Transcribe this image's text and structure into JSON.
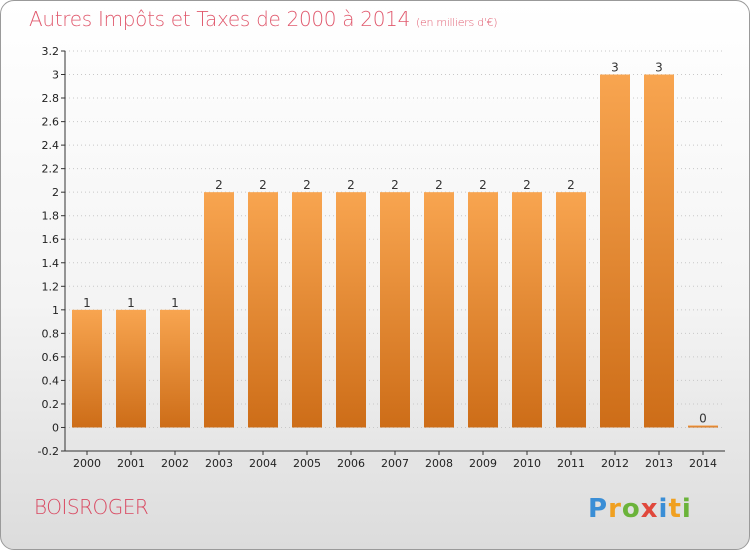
{
  "title": "Autres Impôts et Taxes de 2000 à 2014",
  "unit_note": "(en milliers d'€)",
  "commune": "BOISROGER",
  "logo_text": "Proxiti",
  "colors": {
    "title": "#e05a6e",
    "bar_light": "#f8a550",
    "bar_dark": "#cd6d18",
    "axis": "#333333",
    "grid": "#c8c8c8"
  },
  "chart_data": {
    "type": "bar",
    "title": "Autres Impôts et Taxes de 2000 à 2014",
    "xlabel": "",
    "ylabel": "",
    "categories": [
      "2000",
      "2001",
      "2002",
      "2003",
      "2004",
      "2005",
      "2006",
      "2007",
      "2008",
      "2009",
      "2010",
      "2011",
      "2012",
      "2013",
      "2014"
    ],
    "values": [
      1,
      1,
      1,
      2,
      2,
      2,
      2,
      2,
      2,
      2,
      2,
      2,
      3,
      3,
      0
    ],
    "data_labels": [
      "1",
      "1",
      "1",
      "2",
      "2",
      "2",
      "2",
      "2",
      "2",
      "2",
      "2",
      "2",
      "3",
      "3",
      "0"
    ],
    "ylim": [
      -0.2,
      3.2
    ],
    "yticks": [
      "-0.2",
      "0",
      "0.2",
      "0.4",
      "0.6",
      "0.8",
      "1",
      "1.2",
      "1.4",
      "1.6",
      "1.8",
      "2",
      "2.2",
      "2.4",
      "2.6",
      "2.8",
      "3",
      "3.2"
    ],
    "grid": true
  }
}
